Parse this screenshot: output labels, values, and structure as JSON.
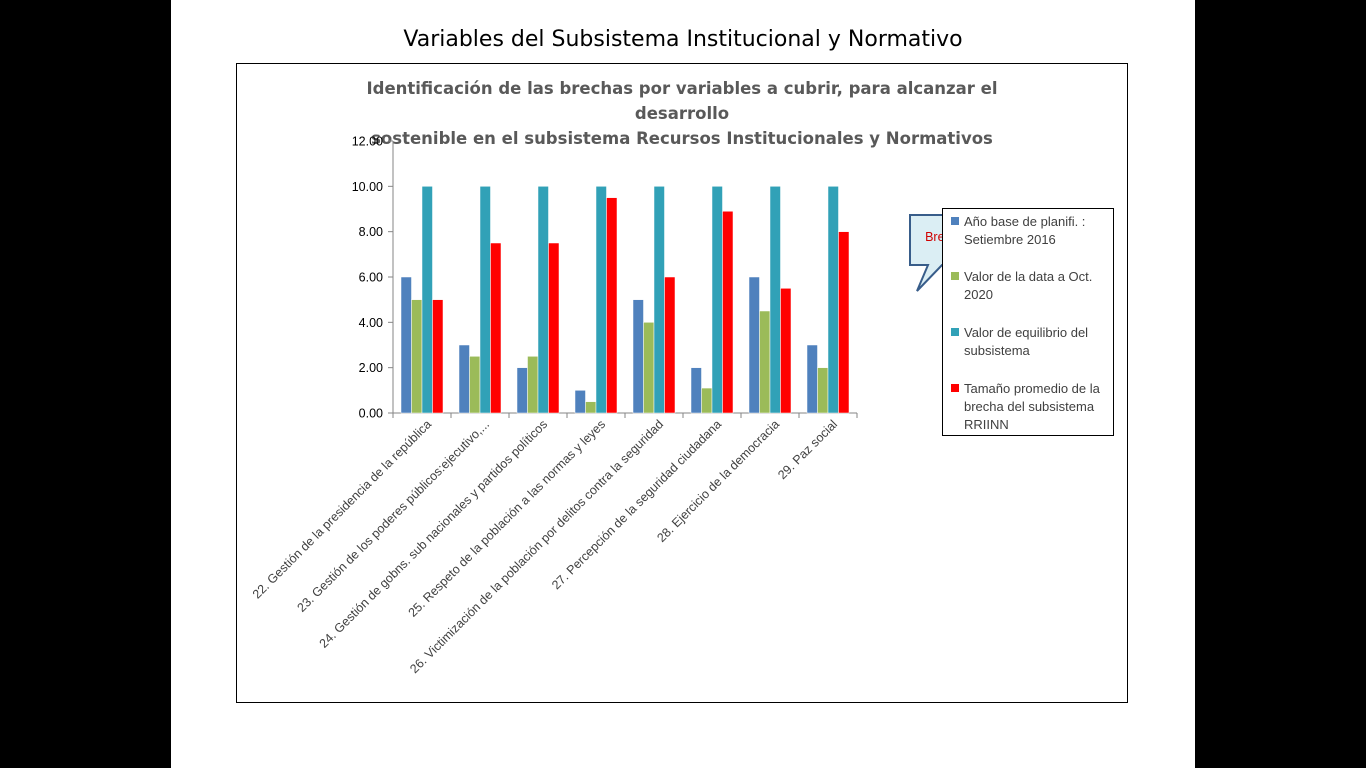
{
  "slide": {
    "title": "Variables del Subsistema Institucional y Normativo"
  },
  "chart_data": {
    "type": "bar",
    "title": "Identificación de las brechas por variables a cubrir, para alcanzar el desarrollo sostenible en el subsistema Recursos Institucionales y Normativos",
    "title_lines": [
      "Identificación de las brechas por variables a cubrir, para alcanzar el desarrollo",
      "sostenible en el subsistema Recursos Institucionales y Normativos"
    ],
    "xlabel": "",
    "ylabel": "",
    "ylim": [
      0,
      12
    ],
    "yticks": [
      "0.00",
      "2.00",
      "4.00",
      "6.00",
      "8.00",
      "10.00",
      "12.00"
    ],
    "grid": false,
    "legend_position": "right",
    "categories": [
      "22. Gestión de la presidencia de la república",
      "23. Gestión de los poderes públicos:ejecutivo,...",
      "24. Gestión de gobns. sub nacionales  y partidos políticos",
      "25. Respeto de la población a las normas y leyes",
      "26. Victimización de la población por delitos contra la seguridad",
      "27. Percepción de la seguridad ciudadana",
      "28. Ejercicio de la democracia",
      "29. Paz social"
    ],
    "series": [
      {
        "name": "Año base de planifi. : Setiembre 2016",
        "name_lines": [
          "Año base de planifi. :",
          "Setiembre 2016"
        ],
        "color": "#4F81BD",
        "values": [
          6,
          3,
          2,
          1,
          5,
          2,
          6,
          3
        ]
      },
      {
        "name": "Valor de la data a Oct. 2020",
        "name_lines": [
          "Valor de la data a Oct.",
          "2020"
        ],
        "color": "#9BBB59",
        "values": [
          5,
          2.5,
          2.5,
          0.5,
          4,
          1.1,
          4.5,
          2
        ]
      },
      {
        "name": "Valor de equilibrio del subsistema",
        "name_lines": [
          "Valor de equilibrio del",
          "subsistema"
        ],
        "color": "#31A1B7",
        "values": [
          10,
          10,
          10,
          10,
          10,
          10,
          10,
          10
        ]
      },
      {
        "name": "Tamaño promedio de la brecha del subsistema RRIINN",
        "name_lines": [
          "Tamaño promedio de la",
          "brecha del subsistema",
          "RRIINN"
        ],
        "color": "#FF0000",
        "values": [
          5,
          7.5,
          7.5,
          9.5,
          6,
          8.9,
          5.5,
          8
        ]
      }
    ],
    "annotation": {
      "text": "Brechas",
      "fill": "#DBEEF4",
      "border": "#385D8A",
      "text_color": "#D00000"
    }
  }
}
